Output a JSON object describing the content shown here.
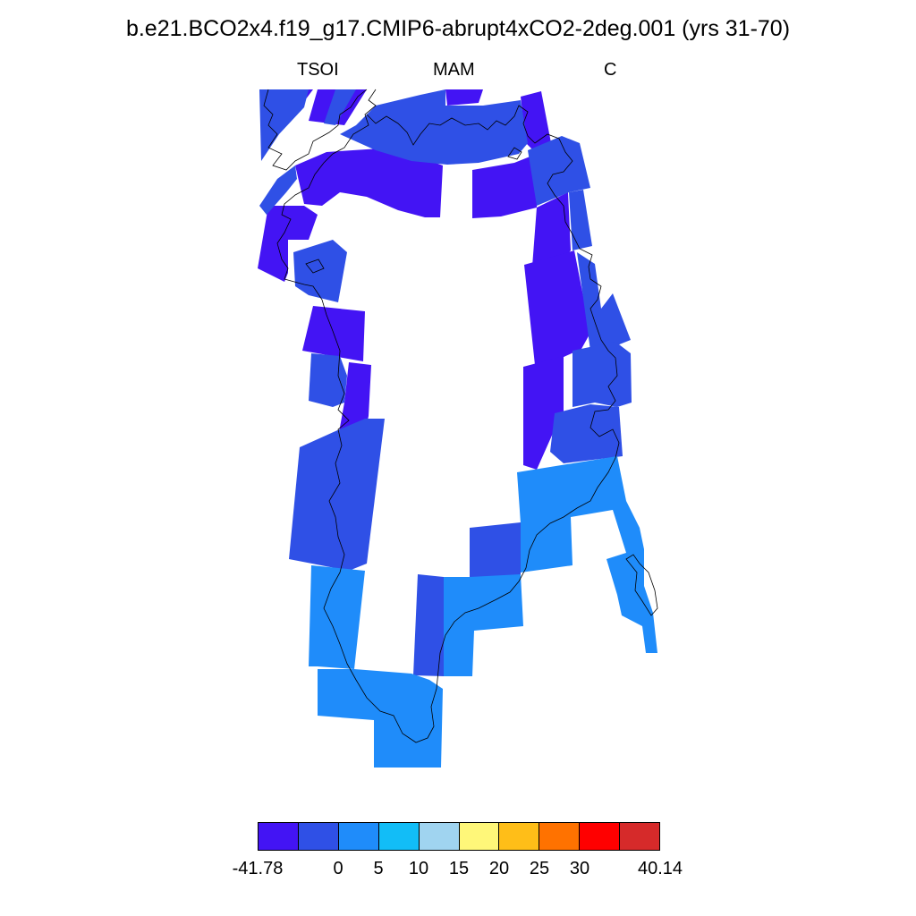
{
  "title": "b.e21.BCO2x4.f19_g17.CMIP6-abrupt4xCO2-2deg.001 (yrs 31-70)",
  "subtitle_left": "TSOI",
  "subtitle_center": "MAM",
  "subtitle_right": "C",
  "colors": {
    "deep_violet": "#4314f4",
    "royal_blue": "#2f50e6",
    "sky_blue": "#1f8cfa"
  },
  "colorbar": {
    "colors": [
      "#4314f4",
      "#2f50e6",
      "#1f8cfa",
      "#12bdf7",
      "#a0d4f0",
      "#fff779",
      "#ffbe18",
      "#ff7200",
      "#ff0000",
      "#d62a2a"
    ],
    "tick_labels": [
      "-41.78",
      "0",
      "5",
      "10",
      "15",
      "20",
      "25",
      "30",
      "40.14"
    ]
  }
}
